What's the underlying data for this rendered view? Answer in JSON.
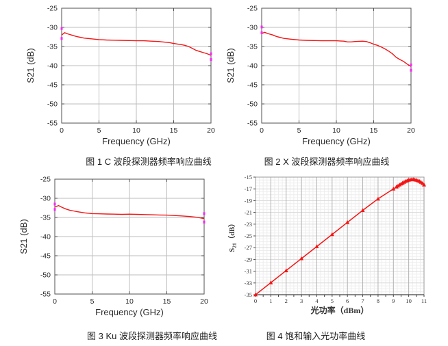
{
  "page": {
    "background": "#ffffff"
  },
  "colors": {
    "curve": "#f51414",
    "end_marker": "#ff22ff",
    "matlab_grid": "#bdbdbd",
    "matlab_axis": "#4f4f4f",
    "matlab_text": "#2b2b2b",
    "excel_minor_grid": "#ededed",
    "excel_major_vgrid": "#b0b0b0",
    "excel_major_hgrid": "#d8d8d8",
    "excel_border": "#9a9a9a",
    "excel_axis": "#404040",
    "excel_text": "#333333"
  },
  "chart_data": [
    {
      "id": "c-band-response",
      "type": "line",
      "style": "matlab",
      "caption": "图 1 C 波段探测器频率响应曲线",
      "xlabel": "Frequency (GHz)",
      "ylabel": "S21 (dB)",
      "xlim": [
        0,
        20
      ],
      "ylim": [
        -55,
        -25
      ],
      "xticks": [
        0,
        5,
        10,
        15,
        20
      ],
      "yticks": [
        -55,
        -50,
        -45,
        -40,
        -35,
        -30,
        -25
      ],
      "grid": "major-interior",
      "legend": "none",
      "points": [
        [
          0,
          -32.0
        ],
        [
          0.4,
          -31.4
        ],
        [
          0.8,
          -31.7
        ],
        [
          1.5,
          -32.1
        ],
        [
          2,
          -32.4
        ],
        [
          3,
          -32.8
        ],
        [
          4,
          -33.0
        ],
        [
          5,
          -33.2
        ],
        [
          6,
          -33.3
        ],
        [
          7,
          -33.35
        ],
        [
          8,
          -33.4
        ],
        [
          9,
          -33.45
        ],
        [
          10,
          -33.5
        ],
        [
          11,
          -33.5
        ],
        [
          12,
          -33.6
        ],
        [
          12.5,
          -33.65
        ],
        [
          13,
          -33.7
        ],
        [
          13.5,
          -33.8
        ],
        [
          14,
          -33.9
        ],
        [
          14.5,
          -34.0
        ],
        [
          15,
          -34.2
        ],
        [
          15.5,
          -34.35
        ],
        [
          16,
          -34.5
        ],
        [
          16.5,
          -34.7
        ],
        [
          17,
          -35.0
        ],
        [
          17.5,
          -35.5
        ],
        [
          18,
          -36.0
        ],
        [
          18.5,
          -36.3
        ],
        [
          19,
          -36.6
        ],
        [
          19.5,
          -36.9
        ],
        [
          20,
          -37.3
        ]
      ],
      "end_markers": [
        [
          0,
          -30.3
        ],
        [
          0,
          -32.9
        ],
        [
          20,
          -36.9
        ],
        [
          20,
          -38.4
        ]
      ]
    },
    {
      "id": "x-band-response",
      "type": "line",
      "style": "matlab",
      "caption": "图 2 X 波段探测器频率响应曲线",
      "xlabel": "Frequency (GHz)",
      "ylabel": "S21 (dB)",
      "xlim": [
        0,
        20
      ],
      "ylim": [
        -55,
        -25
      ],
      "xticks": [
        0,
        5,
        10,
        15,
        20
      ],
      "yticks": [
        -55,
        -50,
        -45,
        -40,
        -35,
        -30,
        -25
      ],
      "grid": "major-interior",
      "legend": "none",
      "points": [
        [
          0,
          -31.6
        ],
        [
          0.4,
          -31.3
        ],
        [
          0.8,
          -31.6
        ],
        [
          1.5,
          -32.0
        ],
        [
          2,
          -32.4
        ],
        [
          3,
          -32.9
        ],
        [
          4,
          -33.1
        ],
        [
          5,
          -33.3
        ],
        [
          6,
          -33.4
        ],
        [
          7,
          -33.45
        ],
        [
          8,
          -33.5
        ],
        [
          9,
          -33.5
        ],
        [
          10,
          -33.5
        ],
        [
          10.5,
          -33.55
        ],
        [
          11,
          -33.6
        ],
        [
          11.5,
          -33.8
        ],
        [
          12,
          -33.8
        ],
        [
          12.5,
          -33.7
        ],
        [
          13,
          -33.65
        ],
        [
          13.5,
          -33.6
        ],
        [
          14,
          -33.7
        ],
        [
          14.5,
          -34.0
        ],
        [
          15,
          -34.4
        ],
        [
          15.5,
          -34.7
        ],
        [
          16,
          -35.1
        ],
        [
          16.5,
          -35.6
        ],
        [
          17,
          -36.2
        ],
        [
          17.5,
          -36.9
        ],
        [
          18,
          -37.8
        ],
        [
          18.5,
          -38.4
        ],
        [
          19,
          -38.9
        ],
        [
          19.5,
          -39.6
        ],
        [
          20,
          -40.2
        ]
      ],
      "end_markers": [
        [
          0,
          -29.9
        ],
        [
          0,
          -31.4
        ],
        [
          20,
          -39.8
        ],
        [
          20,
          -41.2
        ]
      ]
    },
    {
      "id": "ku-band-response",
      "type": "line",
      "style": "matlab",
      "caption": "图 3 Ku 波段探测器频率响应曲线",
      "xlabel": "Frequency (GHz)",
      "ylabel": "S21 (dB)",
      "xlim": [
        0,
        20
      ],
      "ylim": [
        -55,
        -25
      ],
      "xticks": [
        0,
        5,
        10,
        15,
        20
      ],
      "yticks": [
        -55,
        -50,
        -45,
        -40,
        -35,
        -30,
        -25
      ],
      "grid": "major-interior",
      "legend": "none",
      "points": [
        [
          0,
          -32.3
        ],
        [
          0.5,
          -31.9
        ],
        [
          1,
          -32.4
        ],
        [
          1.5,
          -32.8
        ],
        [
          2,
          -33.1
        ],
        [
          2.5,
          -33.3
        ],
        [
          3,
          -33.5
        ],
        [
          4,
          -33.8
        ],
        [
          5,
          -34.0
        ],
        [
          6,
          -34.05
        ],
        [
          7,
          -34.1
        ],
        [
          8,
          -34.15
        ],
        [
          9,
          -34.2
        ],
        [
          10,
          -34.15
        ],
        [
          11,
          -34.2
        ],
        [
          12,
          -34.25
        ],
        [
          13,
          -34.3
        ],
        [
          14,
          -34.35
        ],
        [
          15,
          -34.4
        ],
        [
          16,
          -34.5
        ],
        [
          17,
          -34.6
        ],
        [
          18,
          -34.75
        ],
        [
          19,
          -34.95
        ],
        [
          20,
          -35.3
        ]
      ],
      "end_markers": [
        [
          0,
          -31.5
        ],
        [
          0,
          -32.9
        ],
        [
          20,
          -34.0
        ],
        [
          20,
          -36.2
        ]
      ]
    },
    {
      "id": "saturation-optical-power",
      "type": "line",
      "style": "excel",
      "caption": "图 4 饱和输入光功率曲线",
      "xlabel": "光功率（dBm）",
      "ylabel_parts": [
        "S",
        "21",
        "（dB）"
      ],
      "xlim": [
        0,
        11
      ],
      "ylim": [
        -35,
        -15
      ],
      "xticks": [
        0,
        1,
        2,
        3,
        4,
        5,
        6,
        7,
        8,
        9,
        10,
        11
      ],
      "yticks": [
        -35,
        -33,
        -31,
        -29,
        -27,
        -25,
        -23,
        -21,
        -19,
        -17,
        -15
      ],
      "x_minor_step": 0.25,
      "y_minor_step": 0.5,
      "grid": "major-and-minor",
      "legend": "none",
      "marker": "triangle",
      "points": [
        [
          0,
          -35.0
        ],
        [
          1,
          -32.95
        ],
        [
          2,
          -30.9
        ],
        [
          3,
          -28.85
        ],
        [
          4,
          -26.8
        ],
        [
          5,
          -24.75
        ],
        [
          6,
          -22.7
        ],
        [
          7,
          -20.65
        ],
        [
          8,
          -18.7
        ],
        [
          9,
          -17.0
        ],
        [
          9.2,
          -16.65
        ],
        [
          9.3,
          -16.5
        ],
        [
          9.4,
          -16.3
        ],
        [
          9.5,
          -16.15
        ],
        [
          9.6,
          -16.0
        ],
        [
          9.7,
          -15.85
        ],
        [
          9.8,
          -15.7
        ],
        [
          9.9,
          -15.6
        ],
        [
          10,
          -15.5
        ],
        [
          10.1,
          -15.45
        ],
        [
          10.2,
          -15.4
        ],
        [
          10.3,
          -15.4
        ],
        [
          10.4,
          -15.45
        ],
        [
          10.5,
          -15.5
        ],
        [
          10.6,
          -15.6
        ],
        [
          10.7,
          -15.7
        ],
        [
          10.8,
          -15.85
        ],
        [
          10.9,
          -16.05
        ],
        [
          11,
          -16.3
        ]
      ],
      "marker_points": [
        [
          0,
          -35.0
        ],
        [
          1,
          -32.95
        ],
        [
          2,
          -30.9
        ],
        [
          3,
          -28.85
        ],
        [
          4,
          -26.8
        ],
        [
          5,
          -24.75
        ],
        [
          6,
          -22.7
        ],
        [
          7,
          -20.65
        ],
        [
          8,
          -18.7
        ],
        [
          9,
          -17.0
        ],
        [
          9.2,
          -16.65
        ],
        [
          9.3,
          -16.5
        ],
        [
          9.4,
          -16.3
        ],
        [
          9.5,
          -16.15
        ],
        [
          9.6,
          -16.0
        ],
        [
          9.7,
          -15.85
        ],
        [
          9.8,
          -15.7
        ],
        [
          9.9,
          -15.6
        ],
        [
          10,
          -15.5
        ],
        [
          10.1,
          -15.45
        ],
        [
          10.2,
          -15.4
        ],
        [
          10.3,
          -15.4
        ],
        [
          10.4,
          -15.45
        ],
        [
          10.5,
          -15.5
        ],
        [
          10.6,
          -15.6
        ],
        [
          10.7,
          -15.7
        ],
        [
          10.8,
          -15.85
        ],
        [
          10.9,
          -16.05
        ],
        [
          11,
          -16.3
        ]
      ]
    }
  ]
}
